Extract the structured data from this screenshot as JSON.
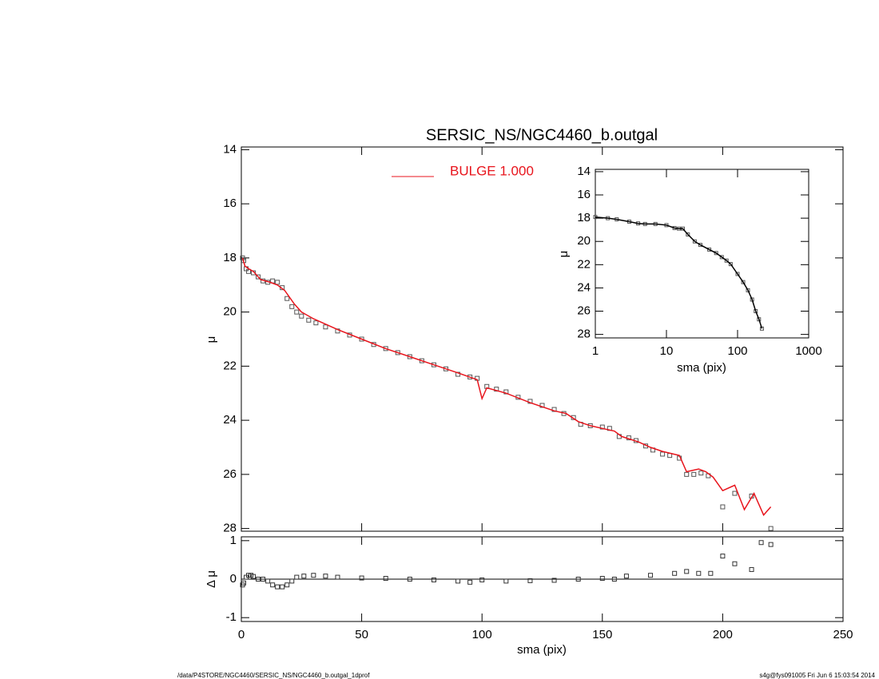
{
  "chart_data": [
    {
      "type": "scatter",
      "title": "SERSIC_NS/NGC4460_b.outgal",
      "ylabel": "μ",
      "xlim": [
        0,
        250
      ],
      "xticks": [
        0,
        50,
        100,
        150,
        200,
        250
      ],
      "ylim": [
        28.1,
        13.9
      ],
      "yticks": [
        14,
        16,
        18,
        20,
        22,
        24,
        26,
        28
      ],
      "series": [
        {
          "marker": "square",
          "color": "#555555",
          "x": [
            0.5,
            1,
            2,
            3,
            5,
            7,
            9,
            11,
            13,
            15,
            17,
            19,
            21,
            23,
            25,
            28,
            31,
            35,
            40,
            45,
            50,
            55,
            60,
            65,
            70,
            75,
            80,
            85,
            90,
            95,
            98,
            102,
            106,
            110,
            115,
            120,
            125,
            130,
            134,
            138,
            141,
            145,
            150,
            153,
            157,
            161,
            164,
            168,
            171,
            175,
            178,
            182,
            185,
            188,
            191,
            194,
            200,
            205,
            212,
            220
          ],
          "values": [
            18.0,
            18.1,
            18.4,
            18.5,
            18.55,
            18.7,
            18.85,
            18.9,
            18.85,
            18.9,
            19.1,
            19.5,
            19.8,
            20.0,
            20.15,
            20.3,
            20.4,
            20.55,
            20.7,
            20.85,
            21.0,
            21.2,
            21.35,
            21.5,
            21.65,
            21.8,
            21.95,
            22.1,
            22.3,
            22.4,
            22.45,
            22.75,
            22.85,
            22.95,
            23.15,
            23.3,
            23.45,
            23.6,
            23.75,
            23.9,
            24.15,
            24.2,
            24.25,
            24.3,
            24.6,
            24.65,
            24.75,
            24.95,
            25.1,
            25.25,
            25.3,
            25.4,
            26.0,
            26.0,
            25.95,
            26.05,
            27.2,
            26.7,
            26.8,
            28.0
          ]
        },
        {
          "name": "BULGE  1.000",
          "marker": "line",
          "color": "#e8141c",
          "x": [
            0.5,
            1.5,
            3,
            5,
            8,
            12,
            15,
            18,
            22,
            25,
            30,
            40,
            50,
            60,
            70,
            80,
            90,
            98,
            100,
            102,
            110,
            120,
            130,
            135,
            140,
            145,
            150,
            155,
            158,
            165,
            170,
            175,
            182,
            185,
            190,
            193,
            196,
            200,
            205,
            209,
            213,
            217,
            220
          ],
          "values": [
            18.0,
            18.3,
            18.4,
            18.5,
            18.8,
            18.9,
            19.0,
            19.2,
            19.7,
            20.0,
            20.25,
            20.65,
            21.0,
            21.35,
            21.65,
            21.95,
            22.25,
            22.5,
            23.2,
            22.8,
            23.0,
            23.35,
            23.65,
            23.75,
            24.05,
            24.2,
            24.3,
            24.4,
            24.6,
            24.8,
            25.0,
            25.15,
            25.3,
            25.9,
            25.8,
            25.9,
            26.1,
            26.6,
            26.4,
            27.3,
            26.7,
            27.5,
            27.2
          ]
        }
      ]
    },
    {
      "type": "scatter",
      "xlabel": "sma (pix)",
      "ylabel": "Δ μ",
      "xlim": [
        0,
        250
      ],
      "xticks": [
        0,
        50,
        100,
        150,
        200,
        250
      ],
      "ylim": [
        -1.1,
        1.1
      ],
      "yticks": [
        -1,
        0,
        1
      ],
      "series": [
        {
          "marker": "square",
          "color": "#333333",
          "x": [
            0.5,
            1,
            2,
            3,
            4,
            5,
            7,
            9,
            11,
            13,
            15,
            17,
            19,
            21,
            23,
            26,
            30,
            35,
            40,
            50,
            60,
            70,
            80,
            90,
            95,
            100,
            110,
            120,
            130,
            140,
            150,
            155,
            160,
            170,
            180,
            185,
            190,
            195,
            200,
            205,
            212,
            216,
            220
          ],
          "values": [
            -0.15,
            -0.1,
            0.05,
            0.1,
            0.1,
            0.07,
            0.0,
            0.0,
            -0.05,
            -0.15,
            -0.2,
            -0.2,
            -0.15,
            -0.05,
            0.05,
            0.08,
            0.1,
            0.08,
            0.05,
            0.03,
            0.02,
            0.0,
            -0.02,
            -0.05,
            -0.08,
            -0.02,
            -0.05,
            -0.04,
            -0.03,
            0.0,
            0.02,
            0.0,
            0.08,
            0.1,
            0.15,
            0.2,
            0.15,
            0.15,
            0.6,
            0.4,
            0.25,
            0.95,
            0.9
          ]
        }
      ]
    },
    {
      "type": "scatter",
      "xlabel": "sma (pix)",
      "ylabel": "μ",
      "xlog": true,
      "xlim": [
        1,
        1000
      ],
      "xticks": [
        1,
        10,
        100,
        1000
      ],
      "ylim": [
        28.3,
        13.8
      ],
      "yticks": [
        14,
        16,
        18,
        20,
        22,
        24,
        26,
        28
      ],
      "series": [
        {
          "marker": "square",
          "color": "#555555",
          "x": [
            1,
            1.5,
            2,
            3,
            4,
            5,
            7,
            10,
            13,
            15,
            17,
            20,
            25,
            30,
            40,
            50,
            60,
            70,
            80,
            100,
            120,
            140,
            160,
            180,
            200,
            220
          ],
          "values": [
            17.9,
            18.0,
            18.1,
            18.3,
            18.45,
            18.5,
            18.5,
            18.6,
            18.85,
            18.9,
            18.9,
            19.4,
            20.0,
            20.3,
            20.7,
            21.0,
            21.35,
            21.65,
            21.95,
            22.8,
            23.5,
            24.2,
            25.0,
            26.0,
            26.7,
            27.5
          ]
        },
        {
          "marker": "line",
          "color": "#000000",
          "x": [
            1,
            1.5,
            2,
            3,
            4,
            5,
            7,
            10,
            13,
            15,
            17,
            20,
            25,
            30,
            40,
            50,
            60,
            70,
            80,
            100,
            120,
            140,
            160,
            180,
            200,
            220
          ],
          "values": [
            17.9,
            18.0,
            18.1,
            18.3,
            18.45,
            18.5,
            18.5,
            18.6,
            18.85,
            18.9,
            18.9,
            19.4,
            20.0,
            20.3,
            20.7,
            21.0,
            21.35,
            21.65,
            21.95,
            22.8,
            23.5,
            24.2,
            25.0,
            26.0,
            26.7,
            27.5
          ]
        }
      ]
    }
  ],
  "footer": {
    "left": "/data/P4STORE/NGC4460/SERSIC_NS/NGC4460_b.outgal_1dprof",
    "right": "s4g@fys091005  Fri Jun  6 15:03:54 2014"
  }
}
